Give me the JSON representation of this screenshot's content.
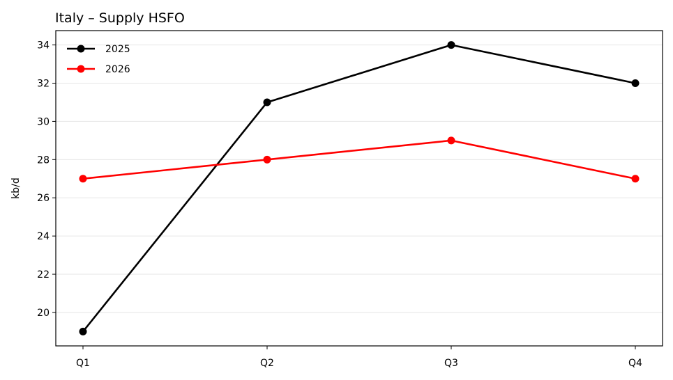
{
  "chart_data": {
    "type": "line",
    "title": "Italy – Supply HSFO",
    "xlabel": "",
    "ylabel": "kb/d",
    "categories": [
      "Q1",
      "Q2",
      "Q3",
      "Q4"
    ],
    "series": [
      {
        "name": "2025",
        "values": [
          19,
          31,
          34,
          32
        ],
        "color": "#000000"
      },
      {
        "name": "2026",
        "values": [
          27,
          28,
          29,
          27
        ],
        "color": "#ff0000"
      }
    ],
    "ylim": [
      18.25,
      34.75
    ],
    "yticks": [
      20,
      22,
      24,
      26,
      28,
      30,
      32,
      34
    ],
    "grid": "horizontal",
    "legend_position": "top-left"
  }
}
